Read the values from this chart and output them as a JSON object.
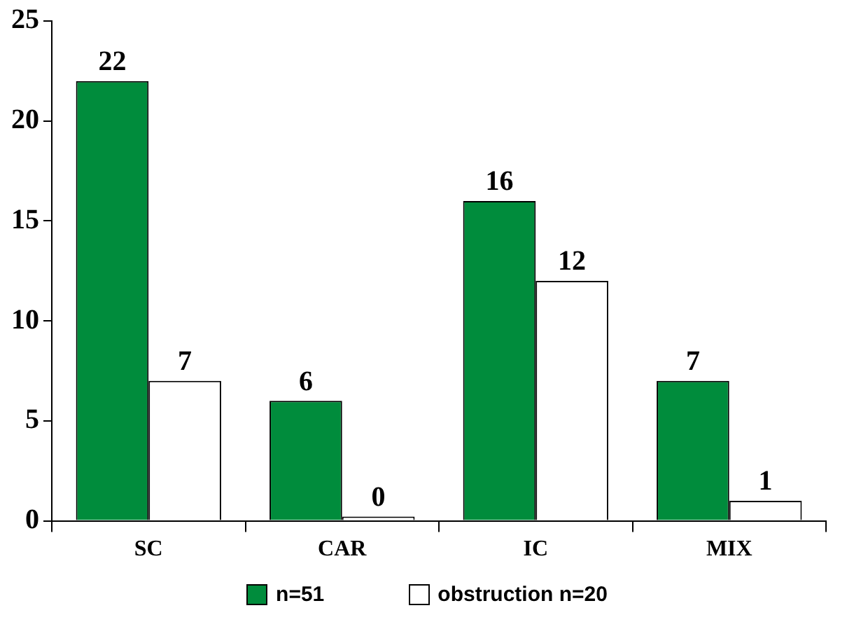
{
  "chart_data": {
    "type": "bar",
    "categories": [
      "SC",
      "CAR",
      "IC",
      "MIX"
    ],
    "series": [
      {
        "name": "n=51",
        "color": "#008c3c",
        "values": [
          22,
          6,
          16,
          7
        ]
      },
      {
        "name": "obstruction n=20",
        "color": "#ffffff",
        "values": [
          7,
          0,
          12,
          1
        ]
      }
    ],
    "ylim": [
      0,
      25
    ],
    "yticks": [
      0,
      5,
      10,
      15,
      20,
      25
    ],
    "grid": false,
    "legend": "bottom",
    "data_labels": true
  }
}
